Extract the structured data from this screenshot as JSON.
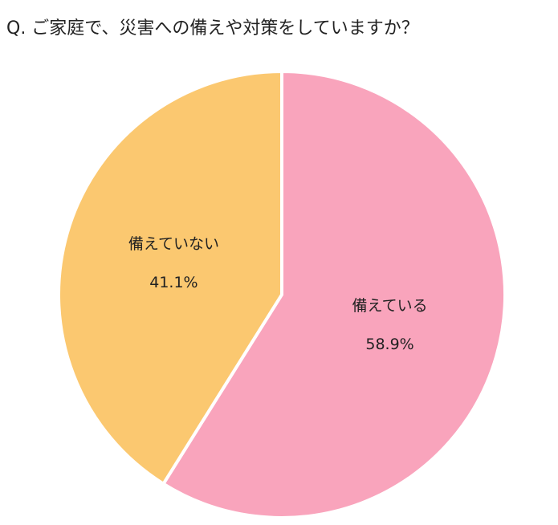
{
  "chart_data": {
    "type": "pie",
    "title": "Q.  ご家庭で、災害への備えや対策をしていますか？",
    "categories": [
      "備えている",
      "備えていない"
    ],
    "values": [
      58.9,
      41.1
    ],
    "value_labels": [
      "58.9%",
      "41.1%"
    ],
    "colors": [
      "#f9a4bc",
      "#fbc870"
    ]
  }
}
